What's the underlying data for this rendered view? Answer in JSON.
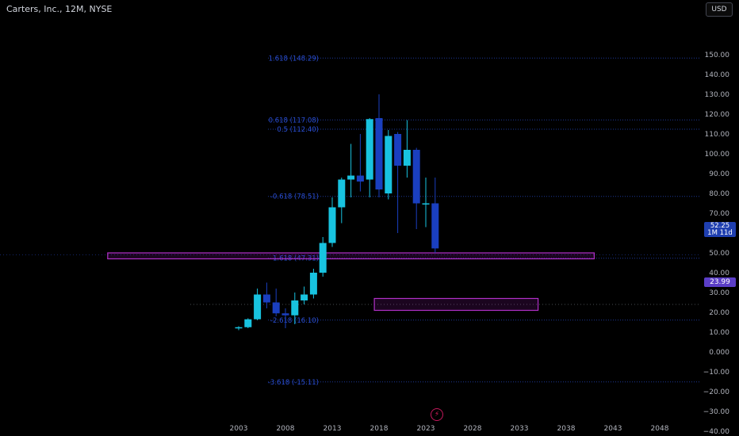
{
  "chart_data": {
    "type": "candlestick",
    "title": "Carters, Inc., 12M, NYSE",
    "currency": "USD",
    "y_ticks": [
      150,
      140,
      130,
      120,
      110,
      100,
      90,
      80,
      70,
      60,
      50,
      40,
      30,
      20,
      10,
      0,
      -10,
      -20,
      -30,
      -40
    ],
    "y_tick_labels": [
      "150.00",
      "140.00",
      "130.00",
      "120.00",
      "110.00",
      "100.00",
      "90.00",
      "80.00",
      "70.00",
      "60.00",
      "50.00",
      "40.00",
      "30.00",
      "20.00",
      "10.00",
      "0.000",
      "−10.00",
      "−20.00",
      "−30.00",
      "−40.00"
    ],
    "x_tick_labels": [
      "2003",
      "2008",
      "2013",
      "2018",
      "2023",
      "2028",
      "2033",
      "2038",
      "2043",
      "2048"
    ],
    "ylim": [
      -42,
      152
    ],
    "last_price": "52.25",
    "last_price_countdown": "1M 11d",
    "alt_price": "23.99",
    "alt_price_value": 23.99,
    "candles": [
      {
        "year": 2003,
        "open": 12,
        "high": 13,
        "low": 11,
        "close": 12.5
      },
      {
        "year": 2004,
        "open": 12.5,
        "high": 17,
        "low": 12,
        "close": 16.5
      },
      {
        "year": 2005,
        "open": 16.5,
        "high": 32,
        "low": 16,
        "close": 29
      },
      {
        "year": 2006,
        "open": 29,
        "high": 35,
        "low": 22,
        "close": 25
      },
      {
        "year": 2007,
        "open": 25,
        "high": 32,
        "low": 18,
        "close": 19.5
      },
      {
        "year": 2008,
        "open": 19.5,
        "high": 22,
        "low": 12,
        "close": 18.5
      },
      {
        "year": 2009,
        "open": 18.5,
        "high": 30,
        "low": 14,
        "close": 26
      },
      {
        "year": 2010,
        "open": 26,
        "high": 33,
        "low": 24,
        "close": 29
      },
      {
        "year": 2011,
        "open": 29,
        "high": 42,
        "low": 27,
        "close": 40
      },
      {
        "year": 2012,
        "open": 40,
        "high": 58,
        "low": 38,
        "close": 55
      },
      {
        "year": 2013,
        "open": 55,
        "high": 78,
        "low": 53,
        "close": 73
      },
      {
        "year": 2014,
        "open": 73,
        "high": 88,
        "low": 65,
        "close": 87
      },
      {
        "year": 2015,
        "open": 87,
        "high": 105,
        "low": 78,
        "close": 89
      },
      {
        "year": 2016,
        "open": 89,
        "high": 110,
        "low": 81,
        "close": 86
      },
      {
        "year": 2017,
        "open": 87,
        "high": 118,
        "low": 78,
        "close": 117.5
      },
      {
        "year": 2018,
        "open": 118,
        "high": 130,
        "low": 78,
        "close": 82
      },
      {
        "year": 2019,
        "open": 80,
        "high": 112,
        "low": 77,
        "close": 109
      },
      {
        "year": 2020,
        "open": 110,
        "high": 111,
        "low": 60,
        "close": 94
      },
      {
        "year": 2021,
        "open": 94,
        "high": 117,
        "low": 88,
        "close": 102
      },
      {
        "year": 2022,
        "open": 102,
        "high": 103,
        "low": 62,
        "close": 75
      },
      {
        "year": 2023,
        "open": 75,
        "high": 88,
        "low": 63,
        "close": 75
      },
      {
        "year": 2024,
        "open": 75,
        "high": 88,
        "low": 50,
        "close": 52.25
      }
    ],
    "fib_levels": [
      {
        "label": "1.618 (148.29)",
        "value": 148.29
      },
      {
        "label": "0.618 (117.08)",
        "value": 117.08
      },
      {
        "label": "0.5 (112.40)",
        "value": 112.4
      },
      {
        "label": "-0.618 (78.51)",
        "value": 78.51
      },
      {
        "label": "-1.618 (47.31)",
        "value": 47.31
      },
      {
        "label": "-2.618 (16.10)",
        "value": 16.1
      },
      {
        "label": "-3.618 (-15.11)",
        "value": -15.11
      }
    ],
    "zones": [
      {
        "name": "upper-zone",
        "from_year": 1989,
        "to_year": 2041,
        "top": 50,
        "bottom": 47
      },
      {
        "name": "lower-zone",
        "from_year": 2017.5,
        "to_year": 2035,
        "top": 27,
        "bottom": 21
      }
    ],
    "colors": {
      "bull": "#18c3e0",
      "bear": "#1a3fbf",
      "fib": "#2a4fd6",
      "zone": "#b130c8",
      "axis_text": "#b2b5be",
      "background": "#000000"
    }
  }
}
